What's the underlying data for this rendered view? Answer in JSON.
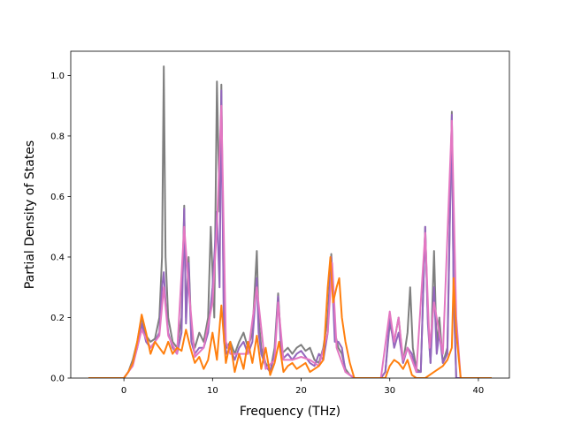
{
  "chart_data": {
    "type": "line",
    "title": "",
    "xlabel": "Frequency (THz)",
    "ylabel": "Partial Density of States",
    "xlim": [
      -6,
      43.5
    ],
    "ylim": [
      0,
      1.08
    ],
    "xticks": [
      0,
      10,
      20,
      30,
      40
    ],
    "yticks": [
      0.0,
      0.2,
      0.4,
      0.6,
      0.8,
      1.0
    ],
    "xtick_labels": [
      "0",
      "10",
      "20",
      "30",
      "40"
    ],
    "ytick_labels": [
      "0.0",
      "0.2",
      "0.4",
      "0.6",
      "0.8",
      "1.0"
    ],
    "grid": false,
    "legend": "none",
    "colors": [
      "#1f77b4",
      "#d62728",
      "#e377c2",
      "#9467bd",
      "#7f7f7f",
      "#ff7f0e"
    ],
    "series": [
      {
        "color": "#7f7f7f",
        "x": [
          -4,
          0,
          0.5,
          1,
          1.5,
          2,
          2.5,
          3,
          3.5,
          4,
          4.3,
          4.5,
          4.7,
          5,
          5.5,
          6,
          6.5,
          6.8,
          7,
          7.3,
          7.6,
          8,
          8.5,
          9,
          9.5,
          9.8,
          10.2,
          10.5,
          10.8,
          11,
          11.3,
          11.6,
          12,
          12.5,
          13,
          13.5,
          14,
          14.5,
          15,
          15.2,
          15.5,
          16,
          16.5,
          17,
          17.4,
          17.8,
          18.5,
          19,
          19.5,
          20,
          20.5,
          21,
          21.5,
          22,
          22.5,
          23,
          23.4,
          23.8,
          24.2,
          24.6,
          25,
          25.5,
          26,
          27,
          28,
          29,
          29.5,
          30,
          30.5,
          31,
          31.5,
          32,
          32.3,
          32.6,
          33,
          33.5,
          34,
          34.3,
          34.6,
          35,
          35.3,
          35.6,
          36,
          36.5,
          37,
          37.2,
          37.5,
          38,
          39,
          40,
          41.5
        ],
        "y": [
          0,
          0,
          0.02,
          0.06,
          0.12,
          0.2,
          0.14,
          0.12,
          0.13,
          0.2,
          0.4,
          1.03,
          0.4,
          0.2,
          0.12,
          0.1,
          0.2,
          0.57,
          0.2,
          0.4,
          0.15,
          0.1,
          0.15,
          0.12,
          0.2,
          0.5,
          0.2,
          0.98,
          0.55,
          0.97,
          0.15,
          0.1,
          0.12,
          0.08,
          0.12,
          0.15,
          0.1,
          0.15,
          0.42,
          0.2,
          0.1,
          0.05,
          0.02,
          0.1,
          0.28,
          0.08,
          0.1,
          0.08,
          0.1,
          0.11,
          0.09,
          0.1,
          0.06,
          0.05,
          0.1,
          0.2,
          0.41,
          0.15,
          0.1,
          0.08,
          0.03,
          0.01,
          0,
          0,
          0,
          0,
          0.02,
          0.18,
          0.12,
          0.2,
          0.05,
          0.15,
          0.3,
          0.1,
          0.03,
          0.02,
          0.5,
          0.2,
          0.05,
          0.42,
          0.1,
          0.2,
          0.05,
          0.1,
          0.88,
          0.3,
          0,
          0,
          0,
          0,
          0
        ]
      },
      {
        "color": "#9467bd",
        "x": [
          -4,
          0,
          0.5,
          1,
          1.5,
          2,
          2.5,
          3,
          3.5,
          4,
          4.3,
          4.5,
          4.7,
          5,
          5.5,
          6,
          6.5,
          6.8,
          7,
          7.3,
          7.6,
          8,
          8.5,
          9,
          9.5,
          10,
          10.5,
          10.8,
          11,
          11.3,
          11.6,
          12,
          12.5,
          13,
          13.5,
          14,
          14.5,
          15,
          15.2,
          15.5,
          16,
          16.5,
          17,
          17.4,
          17.8,
          18.5,
          19,
          19.5,
          20,
          20.5,
          21,
          21.5,
          22,
          22.5,
          23,
          23.4,
          23.8,
          24.2,
          24.6,
          25,
          25.5,
          26,
          27,
          28,
          29,
          29.5,
          30,
          30.5,
          31,
          31.5,
          32,
          32.5,
          33,
          33.5,
          34,
          34.3,
          34.6,
          35,
          35.3,
          35.6,
          36,
          36.5,
          37,
          37.2,
          37.5,
          38,
          39,
          40,
          41.5
        ],
        "y": [
          0,
          0,
          0.02,
          0.05,
          0.1,
          0.18,
          0.12,
          0.1,
          0.12,
          0.15,
          0.3,
          0.35,
          0.25,
          0.15,
          0.1,
          0.08,
          0.15,
          0.56,
          0.18,
          0.38,
          0.12,
          0.08,
          0.1,
          0.1,
          0.15,
          0.3,
          0.55,
          0.3,
          0.95,
          0.12,
          0.08,
          0.1,
          0.06,
          0.1,
          0.12,
          0.08,
          0.12,
          0.33,
          0.15,
          0.08,
          0.04,
          0.02,
          0.08,
          0.27,
          0.06,
          0.08,
          0.06,
          0.08,
          0.09,
          0.07,
          0.05,
          0.04,
          0.08,
          0.06,
          0.15,
          0.4,
          0.12,
          0.12,
          0.1,
          0.02,
          0.01,
          0,
          0,
          0,
          0,
          0.02,
          0.2,
          0.1,
          0.15,
          0.05,
          0.1,
          0.08,
          0.02,
          0.02,
          0.5,
          0.18,
          0.05,
          0.3,
          0.08,
          0.15,
          0.05,
          0.08,
          0.87,
          0.28,
          0,
          0,
          0,
          0,
          0
        ]
      },
      {
        "color": "#e377c2",
        "x": [
          -4,
          0,
          1,
          2,
          3,
          4,
          4.5,
          5,
          6,
          6.8,
          7.3,
          8,
          9,
          10,
          10.5,
          11,
          11.5,
          12,
          13,
          14,
          15,
          16,
          17,
          17.4,
          18,
          19,
          20,
          21,
          22,
          23,
          23.5,
          24,
          25,
          26,
          29,
          30,
          30.5,
          31,
          31.5,
          32,
          33,
          34,
          34.5,
          35,
          36,
          37,
          37.5,
          38,
          41.5
        ],
        "y": [
          0,
          0,
          0.04,
          0.16,
          0.1,
          0.14,
          0.3,
          0.14,
          0.08,
          0.5,
          0.3,
          0.07,
          0.1,
          0.25,
          0.5,
          0.9,
          0.12,
          0.08,
          0.08,
          0.08,
          0.3,
          0.03,
          0.06,
          0.25,
          0.06,
          0.06,
          0.07,
          0.06,
          0.04,
          0.15,
          0.38,
          0.1,
          0.02,
          0,
          0,
          0.22,
          0.12,
          0.2,
          0.06,
          0.1,
          0.02,
          0.48,
          0.1,
          0.25,
          0.08,
          0.85,
          0.2,
          0,
          0
        ]
      },
      {
        "color": "#ff7f0e",
        "x": [
          -4,
          0,
          0.5,
          1,
          1.5,
          2,
          2.5,
          3,
          3.5,
          4,
          4.5,
          5,
          5.5,
          6,
          6.5,
          7,
          7.5,
          8,
          8.5,
          9,
          9.5,
          10,
          10.5,
          11,
          11.5,
          12,
          12.5,
          13,
          13.5,
          14,
          14.5,
          15,
          15.5,
          16,
          16.5,
          17,
          17.5,
          18,
          18.5,
          19,
          19.5,
          20,
          20.5,
          21,
          21.5,
          22,
          22.5,
          23,
          23.3,
          23.6,
          24,
          24.3,
          24.6,
          25,
          25.5,
          26,
          27,
          29,
          29.5,
          30,
          30.5,
          31,
          31.5,
          32,
          32.5,
          33,
          34,
          35,
          36,
          36.5,
          37,
          37.2,
          37.5,
          38,
          40,
          41.5
        ],
        "y": [
          0,
          0,
          0.02,
          0.05,
          0.12,
          0.21,
          0.15,
          0.08,
          0.12,
          0.1,
          0.08,
          0.12,
          0.08,
          0.1,
          0.09,
          0.16,
          0.1,
          0.05,
          0.07,
          0.03,
          0.06,
          0.15,
          0.06,
          0.24,
          0.05,
          0.12,
          0.02,
          0.08,
          0.03,
          0.12,
          0.05,
          0.14,
          0.03,
          0.1,
          0.01,
          0.05,
          0.12,
          0.02,
          0.04,
          0.05,
          0.03,
          0.04,
          0.05,
          0.02,
          0.03,
          0.04,
          0.06,
          0.3,
          0.4,
          0.25,
          0.3,
          0.33,
          0.2,
          0.12,
          0.05,
          0,
          0,
          0,
          0,
          0.04,
          0.06,
          0.05,
          0.03,
          0.06,
          0.01,
          0,
          0,
          0.02,
          0.04,
          0.06,
          0.1,
          0.33,
          0.15,
          0,
          0,
          0
        ]
      }
    ]
  }
}
